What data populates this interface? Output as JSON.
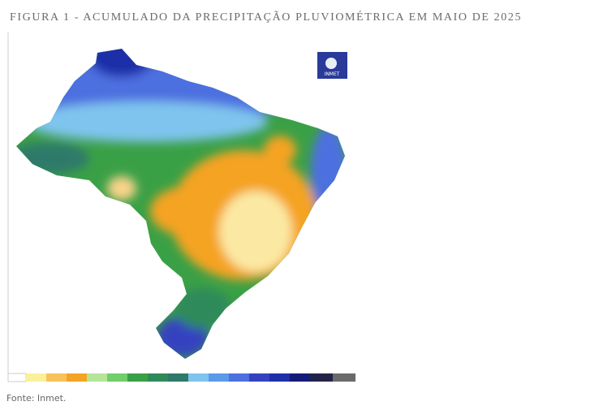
{
  "header": {
    "title": "FIGURA 1 - ACUMULADO DA PRECIPITAÇÃO PLUVIOMÉTRICA EM MAIO DE 2025"
  },
  "logo": {
    "label": "INMET"
  },
  "footer": {
    "source": "Fonte: Inmet."
  }
}
